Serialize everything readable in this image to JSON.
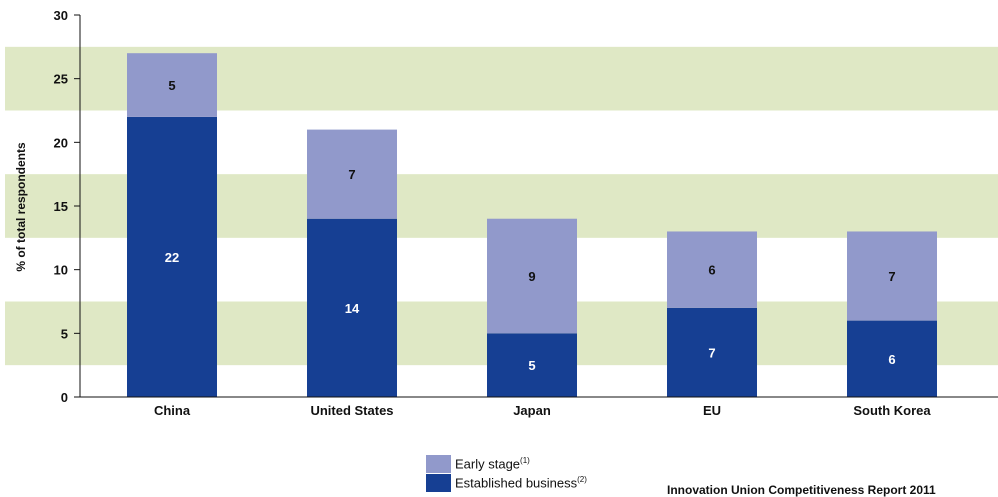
{
  "chart_data": {
    "type": "bar",
    "stacked": true,
    "ylabel": "% of total respondents",
    "ylim": [
      0,
      30
    ],
    "yticks": [
      0,
      5,
      10,
      15,
      20,
      25,
      30
    ],
    "grid": false,
    "background_bands": true,
    "categories": [
      "China",
      "United States",
      "Japan",
      "EU",
      "South Korea"
    ],
    "series": [
      {
        "name": "Established business",
        "note": "(2)",
        "values": [
          22,
          14,
          5,
          7,
          6
        ],
        "color": "#163f93",
        "label_color": "#ffffff"
      },
      {
        "name": "Early stage",
        "note": "(1)",
        "values": [
          5,
          7,
          9,
          6,
          7
        ],
        "color": "#9199cb",
        "label_color": "#111111"
      }
    ],
    "legend_position": "bottom-center"
  },
  "colors": {
    "band": "#dfe8c5",
    "axis": "#111111"
  },
  "source": "Innovation Union Competitiveness Report 2011"
}
